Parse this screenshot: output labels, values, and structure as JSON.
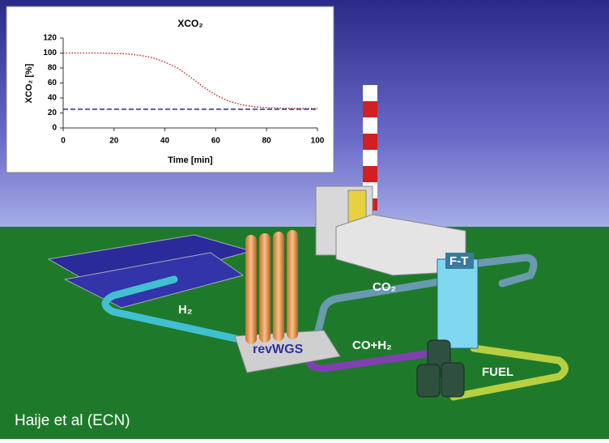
{
  "chart_data": {
    "type": "line",
    "title": "XCO₂",
    "x_label": "Time [min]",
    "y_label": "XCO₂ [%]",
    "x": [
      0,
      5,
      10,
      15,
      20,
      25,
      30,
      35,
      40,
      45,
      50,
      55,
      60,
      65,
      70,
      75,
      80,
      85,
      90,
      95,
      100
    ],
    "series": [
      {
        "color": "#c0392b",
        "style": "dotted",
        "values": [
          100,
          100,
          100,
          100,
          99.5,
          99,
          97,
          94,
          88,
          80,
          68,
          55,
          44,
          36,
          31,
          28.5,
          27,
          26.5,
          26,
          26,
          26
        ]
      },
      {
        "color": "#2c2c8c",
        "style": "dashed",
        "values": [
          25,
          25,
          25,
          25,
          25,
          25,
          25,
          25,
          25,
          25,
          25,
          25,
          25,
          25,
          25,
          25,
          25,
          25,
          25,
          25,
          25
        ]
      }
    ],
    "xlim": [
      0,
      100
    ],
    "xticks": [
      0,
      20,
      40,
      60,
      80,
      100
    ],
    "ylim": [
      0,
      120
    ],
    "yticks": [
      0,
      20,
      40,
      60,
      80,
      100,
      120
    ]
  },
  "illustration": {
    "labels": {
      "co2": "CO₂",
      "h2": "H₂",
      "co_h2": "CO+H₂",
      "fuel": "FUEL",
      "revwgs": "revWGS",
      "ft": "F-T"
    }
  },
  "caption": "Haije et al (ECN)"
}
